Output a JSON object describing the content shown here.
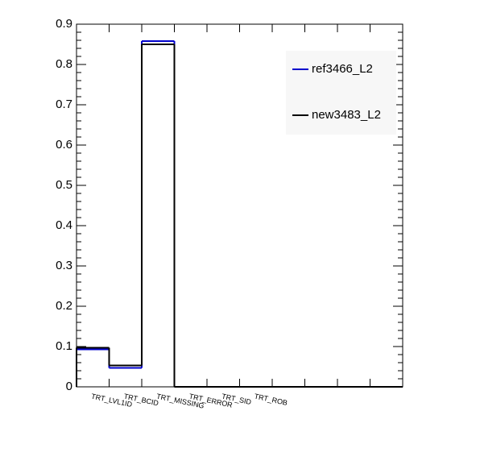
{
  "chart_data": {
    "type": "histogram",
    "categories": [
      "TRT_LVL1ID",
      "TRT_BCID",
      "TRT_MISSING",
      "TRT_ERROR",
      "TRT_SID",
      "TRT_ROB",
      null,
      null,
      null,
      null
    ],
    "series": [
      {
        "name": "ref3466_L2",
        "color": "#0000cc",
        "values": [
          0.093,
          0.047,
          0.858,
          0,
          0,
          0,
          0,
          0,
          0,
          0
        ]
      },
      {
        "name": "new3483_L2",
        "color": "#000000",
        "values": [
          0.097,
          0.053,
          0.85,
          0,
          0,
          0,
          0,
          0,
          0,
          0
        ]
      }
    ],
    "ylim": [
      0,
      0.9
    ],
    "yticks": [
      0,
      0.1,
      0.2,
      0.3,
      0.4,
      0.5,
      0.6,
      0.7,
      0.8,
      0.9
    ],
    "legend": "top-right"
  }
}
